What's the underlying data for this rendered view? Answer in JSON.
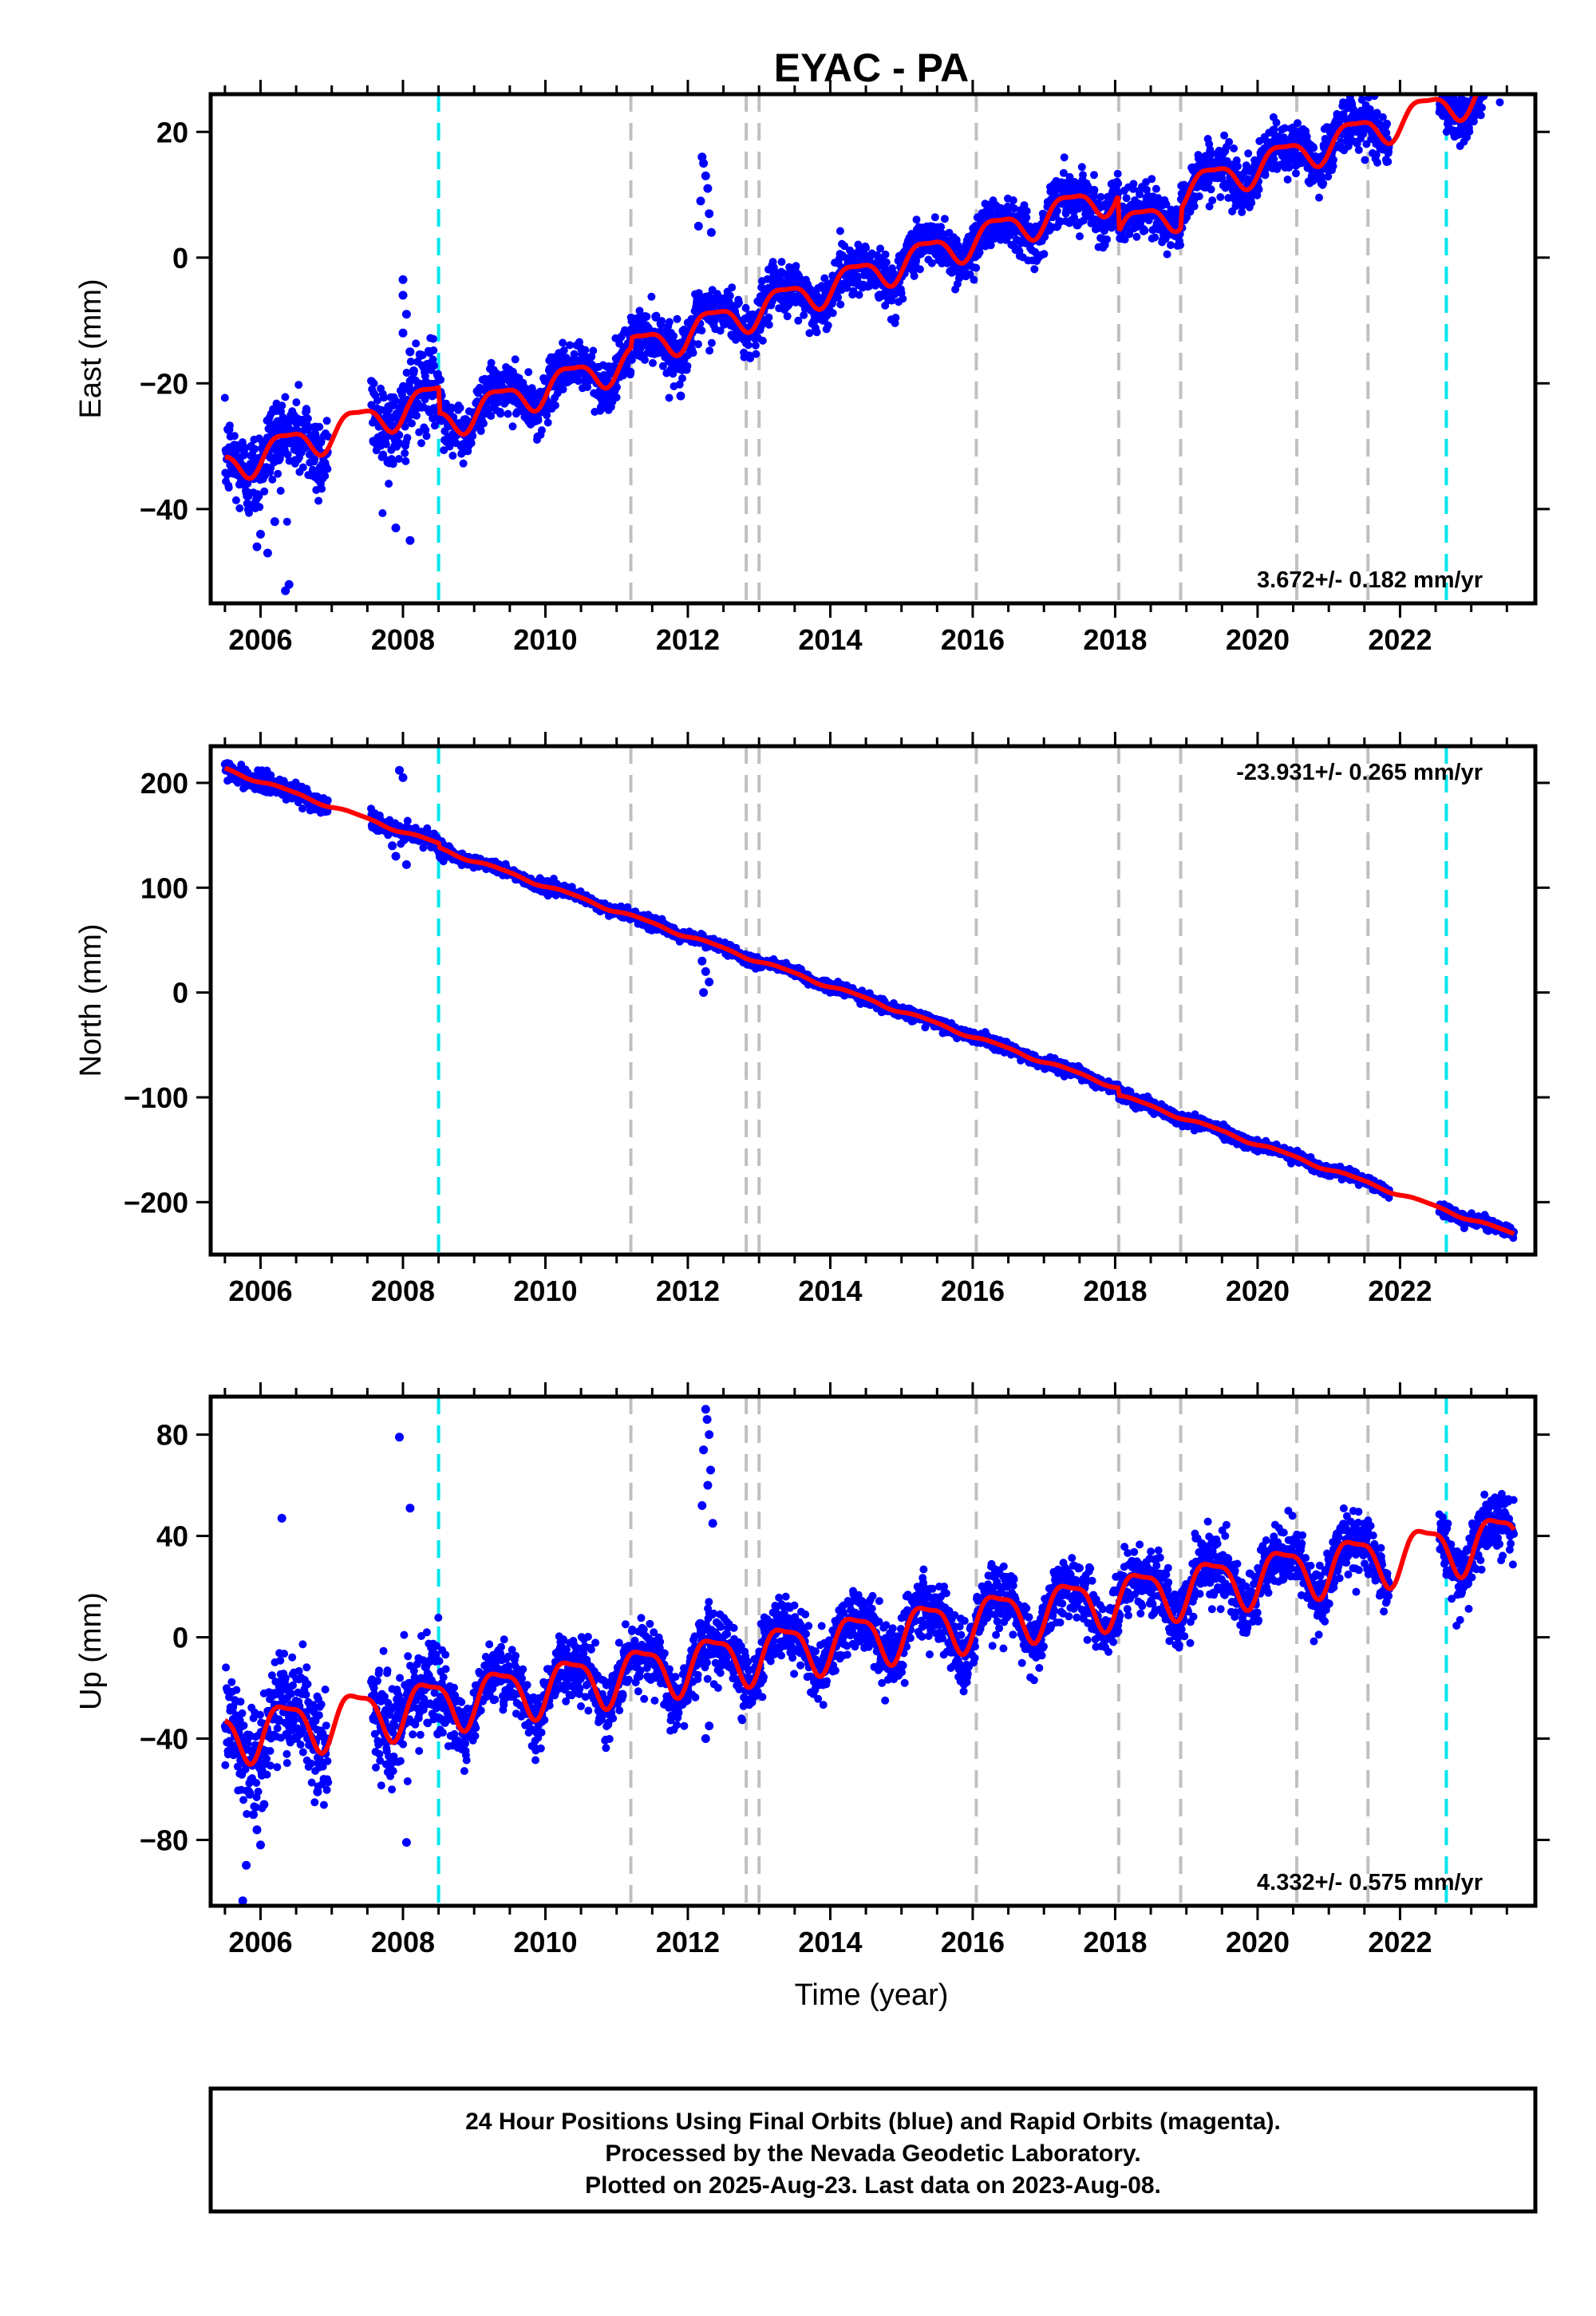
{
  "chart_data": {
    "type": "scatter",
    "title": "EYAC - PA",
    "xlabel": "Time (year)",
    "xlim": [
      2005.3,
      2023.9
    ],
    "x_ticks": [
      2006,
      2008,
      2010,
      2012,
      2014,
      2016,
      2018,
      2020,
      2022
    ],
    "grid": false,
    "point_color": "#0000ff",
    "model_color": "#ff0000",
    "event_lines": {
      "cyan": [
        2008.5,
        2022.65
      ],
      "gray": [
        2011.2,
        2012.82,
        2013.0,
        2016.05,
        2018.05,
        2018.92,
        2020.55,
        2021.55
      ],
      "cyan_color": "#00e5ee",
      "gray_color": "#c0c0c0"
    },
    "data_span": [
      2005.5,
      2023.6
    ],
    "panels": [
      {
        "id": "east",
        "ylabel": "East (mm)",
        "ylim": [
          -55,
          26
        ],
        "y_ticks": [
          -40,
          -20,
          0,
          20
        ],
        "rate_text": "3.672+/- 0.182 mm/yr",
        "rate_position": "bottom-right",
        "trend": {
          "slope": 3.672,
          "value_at_2014": -2.0
        },
        "seasonal_amplitude": 2.5,
        "scatter_noise": 2.0,
        "offsets": [
          {
            "year": 2008.5,
            "step": -4.0
          },
          {
            "year": 2011.2,
            "step": 1.5
          },
          {
            "year": 2018.05,
            "step": -6.0
          },
          {
            "year": 2018.92,
            "step": 3.0
          }
        ],
        "outliers": [
          {
            "x": 2005.95,
            "y": -46
          },
          {
            "x": 2006.0,
            "y": -44
          },
          {
            "x": 2006.1,
            "y": -47
          },
          {
            "x": 2006.35,
            "y": -53
          },
          {
            "x": 2006.4,
            "y": -52
          },
          {
            "x": 2006.2,
            "y": -42
          },
          {
            "x": 2007.9,
            "y": -43
          },
          {
            "x": 2008.1,
            "y": -45
          },
          {
            "x": 2008.0,
            "y": -3.5
          },
          {
            "x": 2008.0,
            "y": -6
          },
          {
            "x": 2008.05,
            "y": -9
          },
          {
            "x": 2008.0,
            "y": -12
          },
          {
            "x": 2008.1,
            "y": -15
          },
          {
            "x": 2008.15,
            "y": -18
          },
          {
            "x": 2011.9,
            "y": -22
          },
          {
            "x": 2012.2,
            "y": 16
          },
          {
            "x": 2012.22,
            "y": 15
          },
          {
            "x": 2012.25,
            "y": 13
          },
          {
            "x": 2012.28,
            "y": 11
          },
          {
            "x": 2012.18,
            "y": 9
          },
          {
            "x": 2012.3,
            "y": 7
          },
          {
            "x": 2012.15,
            "y": 5
          },
          {
            "x": 2012.33,
            "y": 4
          }
        ]
      },
      {
        "id": "north",
        "ylabel": "North (mm)",
        "ylim": [
          -250,
          235
        ],
        "y_ticks": [
          -200,
          -100,
          0,
          100,
          200
        ],
        "rate_text": "-23.931+/- 0.265 mm/yr",
        "rate_position": "top-right",
        "trend": {
          "slope": -23.931,
          "value_at_2014": 10.0
        },
        "seasonal_amplitude": 1.5,
        "scatter_noise": 2.5,
        "offsets": [
          {
            "year": 2008.5,
            "step": -4.0
          },
          {
            "year": 2018.05,
            "step": -7.0
          }
        ],
        "outliers": [
          {
            "x": 2007.95,
            "y": 212
          },
          {
            "x": 2008.0,
            "y": 205
          },
          {
            "x": 2007.9,
            "y": 130
          },
          {
            "x": 2008.05,
            "y": 122
          },
          {
            "x": 2007.85,
            "y": 140
          },
          {
            "x": 2012.2,
            "y": 30
          },
          {
            "x": 2012.25,
            "y": 20
          },
          {
            "x": 2012.3,
            "y": 10
          },
          {
            "x": 2012.22,
            "y": 0
          }
        ]
      },
      {
        "id": "up",
        "ylabel": "Up (mm)",
        "ylim": [
          -106,
          95
        ],
        "y_ticks": [
          -80,
          -40,
          0,
          40,
          80
        ],
        "rate_text": "4.332+/- 0.575 mm/yr",
        "rate_position": "bottom-right",
        "trend": {
          "slope": 4.332,
          "value_at_2014": -2.0
        },
        "seasonal_amplitude": 10.0,
        "scatter_noise": 6.0,
        "offsets": [],
        "outliers": [
          {
            "x": 2006.3,
            "y": 47
          },
          {
            "x": 2007.95,
            "y": 79
          },
          {
            "x": 2008.1,
            "y": 51
          },
          {
            "x": 2008.05,
            "y": -81
          },
          {
            "x": 2006.8,
            "y": -61
          },
          {
            "x": 2005.8,
            "y": -50
          },
          {
            "x": 2005.85,
            "y": -62
          },
          {
            "x": 2005.9,
            "y": -70
          },
          {
            "x": 2005.95,
            "y": -76
          },
          {
            "x": 2006.0,
            "y": -82
          },
          {
            "x": 2005.8,
            "y": -90
          },
          {
            "x": 2005.75,
            "y": -104
          },
          {
            "x": 2006.05,
            "y": -66
          },
          {
            "x": 2012.25,
            "y": 90
          },
          {
            "x": 2012.27,
            "y": 86
          },
          {
            "x": 2012.3,
            "y": 80
          },
          {
            "x": 2012.22,
            "y": 74
          },
          {
            "x": 2012.32,
            "y": 66
          },
          {
            "x": 2012.28,
            "y": 60
          },
          {
            "x": 2012.2,
            "y": 52
          },
          {
            "x": 2012.35,
            "y": 45
          },
          {
            "x": 2012.25,
            "y": -40
          },
          {
            "x": 2012.3,
            "y": -35
          }
        ]
      }
    ]
  },
  "footer": {
    "line1": "24 Hour Positions Using Final Orbits (blue) and Rapid Orbits (magenta).",
    "line2": "Processed by the Nevada Geodetic Laboratory.",
    "line3": "Plotted on 2025-Aug-23. Last data on 2023-Aug-08."
  }
}
